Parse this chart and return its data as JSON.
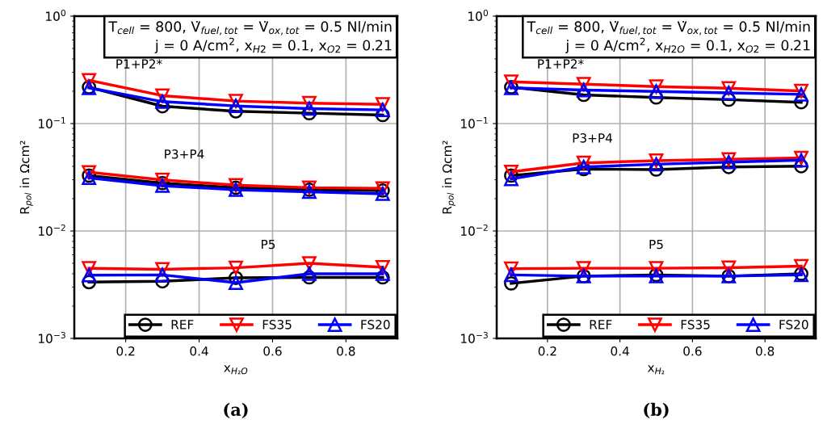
{
  "chart_data": [
    {
      "type": "line",
      "xlabel": "x$_{H₂O}$",
      "ylabel": "R$_{pol}$ in Ωcm²",
      "log": "y",
      "grid": true,
      "legend": "bottom right",
      "xlim": [
        0.06,
        0.94
      ],
      "xticks": [
        0.2,
        0.4,
        0.6,
        0.8
      ],
      "ylim": [
        0.001,
        1
      ],
      "yticks": [
        {
          "value": 0.001,
          "label": "10$^{−3}$"
        },
        {
          "value": 0.01,
          "label": "10$^{−2}$"
        },
        {
          "value": 0.1,
          "label": "10$^{−1}$"
        },
        {
          "value": 1,
          "label": "10$^{0}$"
        }
      ],
      "x": [
        0.1,
        0.3,
        0.5,
        0.7,
        0.9
      ],
      "series": [
        {
          "name": "REF",
          "color": "#000000",
          "marker": "circle",
          "values": [
            0.218,
            0.145,
            0.13,
            0.125,
            0.12
          ]
        },
        {
          "name": "FS35",
          "color": "#ff0000",
          "marker": "triangle_down",
          "values": [
            0.253,
            0.182,
            0.162,
            0.155,
            0.151
          ]
        },
        {
          "name": "FS20",
          "color": "#0000ff",
          "marker": "triangle",
          "values": [
            0.215,
            0.16,
            0.146,
            0.138,
            0.134
          ]
        },
        {
          "color": "#000000",
          "marker": "circle",
          "values": [
            0.0328,
            0.0279,
            0.0253,
            0.0242,
            0.0238
          ]
        },
        {
          "color": "#ff0000",
          "marker": "triangle_down",
          "values": [
            0.0352,
            0.0299,
            0.0267,
            0.0253,
            0.0249
          ]
        },
        {
          "color": "#0000ff",
          "marker": "triangle",
          "values": [
            0.0313,
            0.0264,
            0.0242,
            0.0232,
            0.0222
          ]
        },
        {
          "color": "#000000",
          "marker": "circle",
          "values": [
            0.00334,
            0.0034,
            0.00366,
            0.0037,
            0.0037
          ]
        },
        {
          "color": "#ff0000",
          "marker": "triangle_down",
          "values": [
            0.00449,
            0.0044,
            0.00454,
            0.005,
            0.0046
          ]
        },
        {
          "color": "#0000ff",
          "marker": "triangle",
          "values": [
            0.00388,
            0.0039,
            0.0033,
            0.004,
            0.004
          ]
        }
      ],
      "annotations": [
        "P1+P2*",
        "P3+P4",
        "P5",
        "T$_{cell}$ = 800, V̇$_{fuel,tot}$ = V̇$_{ox,tot}$ = 0.5 Nl/min\nj = 0 A/cm$^{2}$, x$_{H2}$ = 0.1, x$_{O2}$ = 0.21",
        "(a)"
      ]
    },
    {
      "type": "line",
      "xlabel": "x$_{H₂}$",
      "ylabel": "R$_{pol}$ in Ωcm²",
      "log": "y",
      "grid": true,
      "legend": "bottom right",
      "xlim": [
        0.06,
        0.94
      ],
      "xticks": [
        0.2,
        0.4,
        0.6,
        0.8
      ],
      "ylim": [
        0.001,
        1
      ],
      "yticks": [
        {
          "value": 0.001,
          "label": "10$^{−3}$"
        },
        {
          "value": 0.01,
          "label": "10$^{−2}$"
        },
        {
          "value": 0.1,
          "label": "10$^{−1}$"
        },
        {
          "value": 1,
          "label": "10$^{0}$"
        }
      ],
      "x": [
        0.1,
        0.3,
        0.5,
        0.7,
        0.9
      ],
      "series": [
        {
          "name": "REF",
          "color": "#000000",
          "marker": "circle",
          "values": [
            0.218,
            0.185,
            0.175,
            0.167,
            0.158
          ]
        },
        {
          "name": "FS35",
          "color": "#ff0000",
          "marker": "triangle_down",
          "values": [
            0.245,
            0.233,
            0.221,
            0.213,
            0.201
          ]
        },
        {
          "name": "FS20",
          "color": "#0000ff",
          "marker": "triangle",
          "values": [
            0.215,
            0.205,
            0.199,
            0.193,
            0.187
          ]
        },
        {
          "color": "#000000",
          "marker": "circle",
          "values": [
            0.0328,
            0.0377,
            0.0373,
            0.0394,
            0.0401
          ]
        },
        {
          "color": "#ff0000",
          "marker": "triangle_down",
          "values": [
            0.0355,
            0.043,
            0.0451,
            0.0464,
            0.0478
          ]
        },
        {
          "color": "#0000ff",
          "marker": "triangle",
          "values": [
            0.0305,
            0.0394,
            0.0418,
            0.0438,
            0.0456
          ]
        },
        {
          "color": "#000000",
          "marker": "circle",
          "values": [
            0.00325,
            0.0038,
            0.0039,
            0.0038,
            0.004
          ]
        },
        {
          "color": "#ff0000",
          "marker": "triangle_down",
          "values": [
            0.00446,
            0.0045,
            0.0045,
            0.00455,
            0.0047
          ]
        },
        {
          "color": "#0000ff",
          "marker": "triangle",
          "values": [
            0.0039,
            0.0038,
            0.0038,
            0.0038,
            0.0039
          ]
        }
      ],
      "annotations": [
        "P1+P2*",
        "P3+P4",
        "P5",
        "T$_{cell}$ = 800, V̇$_{fuel,tot}$ = V̇$_{ox,tot}$ = 0.5 Nl/min\nj = 0 A/cm$^{2}$, x$_{H2O}$ = 0.1, x$_{O2}$ = 0.21",
        "(b)"
      ]
    }
  ]
}
